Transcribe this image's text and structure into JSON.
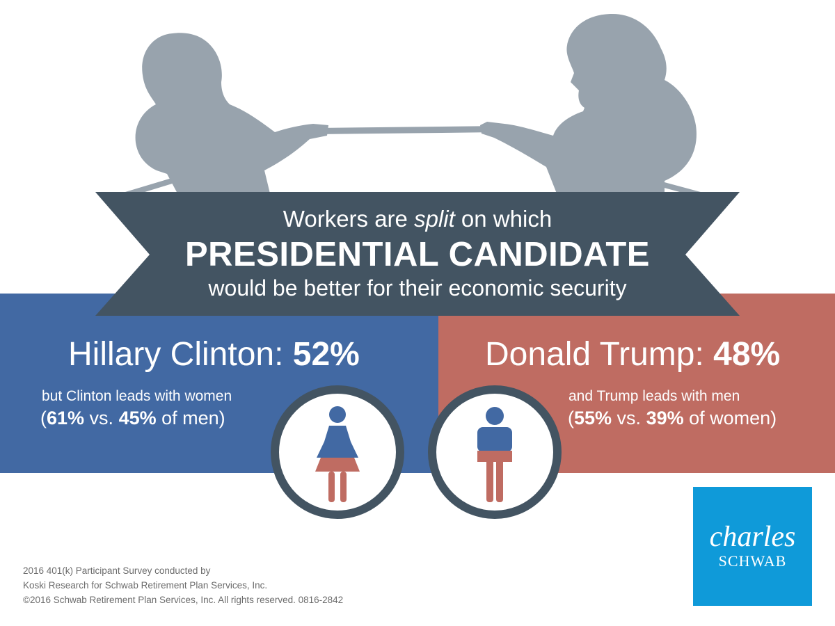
{
  "colors": {
    "silhouette": "#98a3ad",
    "banner": "#435462",
    "clinton_blue": "#4269a3",
    "trump_red": "#bf6c62",
    "schwab_blue": "#0f9ad9"
  },
  "banner": {
    "line1_pre": "Workers are ",
    "line1_em": "split",
    "line1_post": " on which",
    "line2": "PRESIDENTIAL CANDIDATE",
    "line3": "would be better for their economic security"
  },
  "left": {
    "name": "Hillary Clinton:",
    "pct": "52%",
    "sub1": "but Clinton leads with women",
    "open": "(",
    "a": "61%",
    "vs": " vs. ",
    "b": "45%",
    "tail": " of men)"
  },
  "right": {
    "name": "Donald Trump:",
    "pct": "48%",
    "sub1": "and Trump leads with men",
    "open": "(",
    "a": "55%",
    "vs": " vs. ",
    "b": "39%",
    "tail": " of women)"
  },
  "icons": {
    "female": "female-figure-icon",
    "male": "male-figure-icon"
  },
  "footer": {
    "line1": "2016 401(k) Participant Survey conducted by",
    "line2": "Koski Research for Schwab Retirement Plan Services, Inc.",
    "line3": "©2016 Schwab Retirement Plan Services, Inc. All rights reserved. 0816-2842"
  },
  "logo": {
    "word1": "charles",
    "word2": "SCHWAB"
  }
}
